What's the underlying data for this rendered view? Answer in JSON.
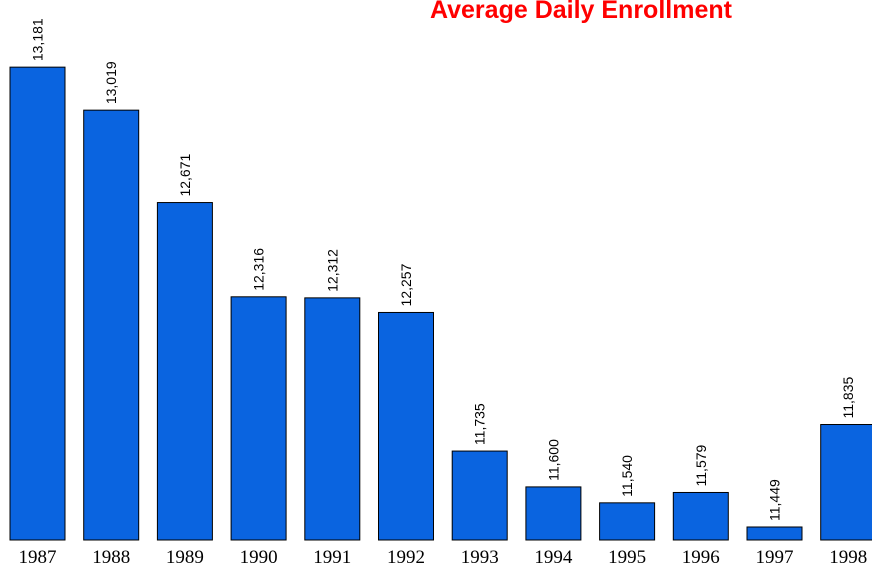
{
  "chart_data": {
    "type": "bar",
    "title": "Average Daily Enrollment",
    "categories": [
      "1987",
      "1988",
      "1989",
      "1990",
      "1991",
      "1992",
      "1993",
      "1994",
      "1995",
      "1996",
      "1997",
      "1998"
    ],
    "values": [
      13181,
      13019,
      12671,
      12316,
      12312,
      12257,
      11735,
      11600,
      11540,
      11579,
      11449,
      11835
    ],
    "value_labels": [
      "13,181",
      "13,019",
      "12,671",
      "12,316",
      "12,312",
      "12,257",
      "11,735",
      "11,600",
      "11,540",
      "11,579",
      "11,449",
      "11,835"
    ],
    "color": "#0a64e0",
    "title_color": "#ff0000",
    "ylim": [
      11400,
      13400
    ]
  }
}
